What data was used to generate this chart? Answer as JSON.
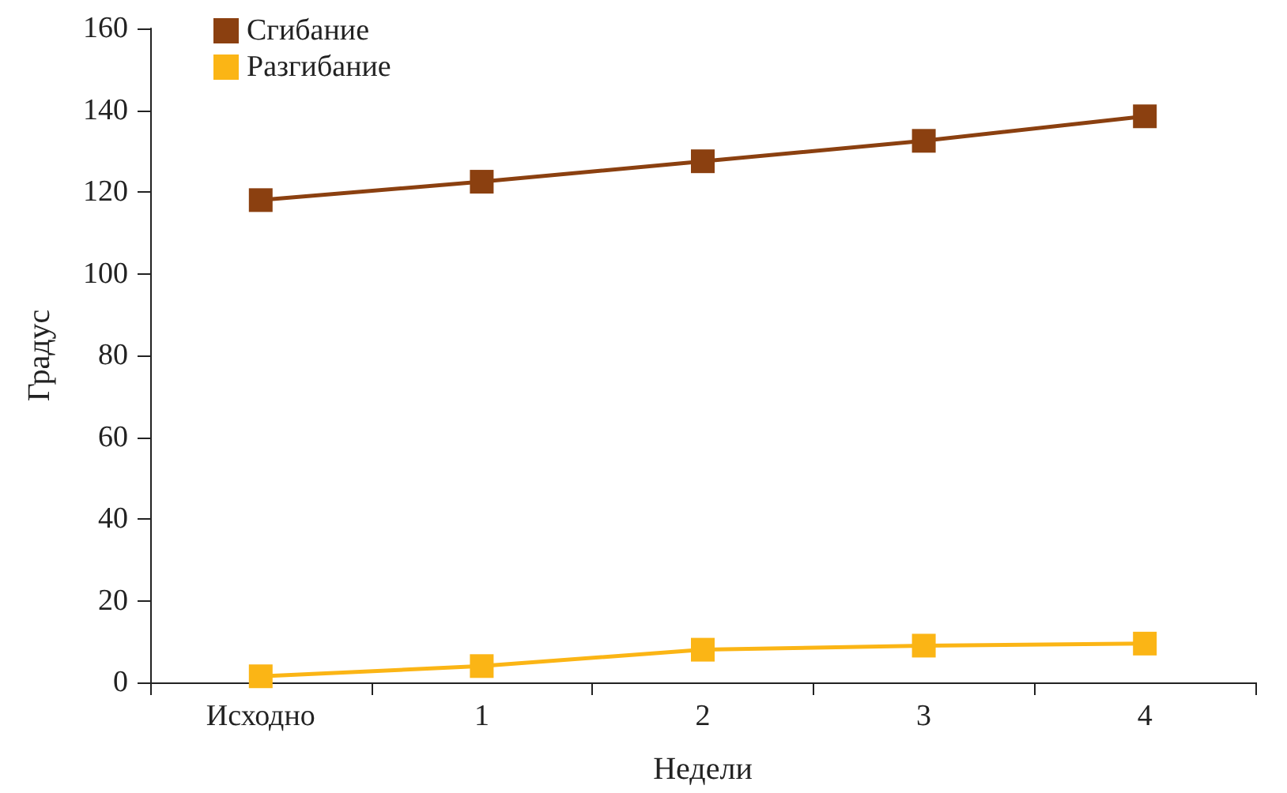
{
  "chart_data": {
    "type": "line",
    "xlabel": "Недели",
    "ylabel": "Градус",
    "categories": [
      "Исходно",
      "1",
      "2",
      "3",
      "4"
    ],
    "series": [
      {
        "name": "Сгибание",
        "color": "#8b4010",
        "values": [
          118,
          122.5,
          127.5,
          132.5,
          138.5
        ]
      },
      {
        "name": "Разгибание",
        "color": "#fbb515",
        "values": [
          1.5,
          4,
          8,
          9,
          9.5
        ]
      }
    ],
    "ylim": [
      0,
      160
    ],
    "yticks": [
      0,
      20,
      40,
      60,
      80,
      100,
      120,
      140,
      160
    ],
    "grid": false,
    "legend": "top left",
    "marker": "square",
    "line_style": "solid"
  }
}
